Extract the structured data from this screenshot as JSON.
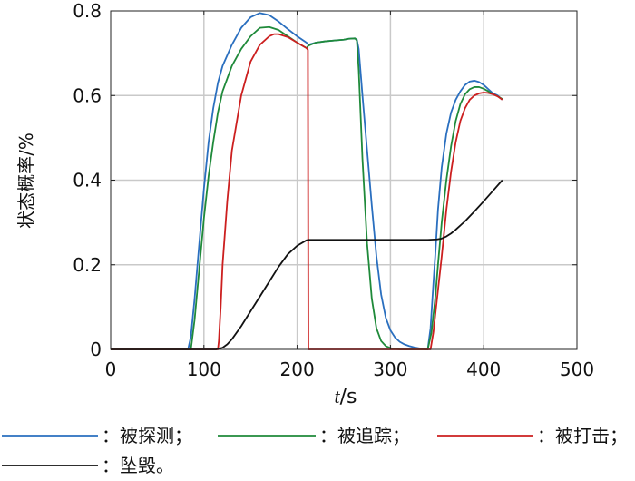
{
  "chart_data": {
    "type": "line",
    "title": "",
    "xlabel_var": "t",
    "xlabel_unit": "s",
    "ylabel": "状态概率/%",
    "xlim": [
      0,
      500
    ],
    "ylim": [
      0,
      0.8
    ],
    "xticks": [
      0,
      100,
      200,
      300,
      400,
      500
    ],
    "xtick_labels": [
      "0",
      "100",
      "200",
      "300",
      "400",
      "500"
    ],
    "yticks": [
      0,
      0.2,
      0.4,
      0.6,
      0.8
    ],
    "ytick_labels": [
      "0",
      "0.2",
      "0.4",
      "0.6",
      "0.8"
    ],
    "grid": true,
    "legend_position": "bottom",
    "series": [
      {
        "name": "：被探测；",
        "color": "#2a6fbf",
        "x": [
          0,
          83,
          86,
          90,
          95,
          100,
          105,
          110,
          115,
          120,
          130,
          140,
          150,
          160,
          170,
          180,
          190,
          200,
          210,
          212,
          220,
          230,
          240,
          250,
          255,
          262,
          264,
          266,
          270,
          275,
          280,
          285,
          290,
          295,
          300,
          305,
          310,
          315,
          320,
          325,
          330,
          335,
          338,
          340,
          343,
          345,
          348,
          351,
          355,
          360,
          365,
          370,
          375,
          380,
          385,
          390,
          395,
          400,
          405,
          410,
          415,
          420
        ],
        "y": [
          0,
          0,
          0.03,
          0.12,
          0.25,
          0.38,
          0.49,
          0.57,
          0.63,
          0.67,
          0.72,
          0.76,
          0.785,
          0.795,
          0.79,
          0.775,
          0.757,
          0.74,
          0.725,
          0.72,
          0.725,
          0.728,
          0.73,
          0.732,
          0.734,
          0.735,
          0.732,
          0.71,
          0.6,
          0.47,
          0.34,
          0.22,
          0.13,
          0.075,
          0.045,
          0.028,
          0.018,
          0.012,
          0.008,
          0.005,
          0.003,
          0.001,
          0,
          0,
          0.05,
          0.12,
          0.22,
          0.33,
          0.43,
          0.51,
          0.56,
          0.59,
          0.61,
          0.625,
          0.633,
          0.635,
          0.632,
          0.625,
          0.615,
          0.605,
          0.6,
          0.59
        ]
      },
      {
        "name": "：被追踪；",
        "color": "#1f8a3a",
        "x": [
          0,
          86,
          90,
          95,
          100,
          105,
          110,
          115,
          120,
          130,
          140,
          150,
          160,
          170,
          180,
          190,
          200,
          210,
          212,
          220,
          230,
          240,
          250,
          255,
          262,
          264,
          266,
          270,
          275,
          280,
          285,
          290,
          295,
          300,
          305,
          310,
          320,
          330,
          340,
          344,
          348,
          351,
          355,
          360,
          365,
          370,
          375,
          380,
          385,
          390,
          395,
          400,
          405,
          410,
          415,
          420
        ],
        "y": [
          0,
          0,
          0.07,
          0.19,
          0.31,
          0.41,
          0.49,
          0.56,
          0.61,
          0.67,
          0.71,
          0.74,
          0.76,
          0.762,
          0.755,
          0.74,
          0.725,
          0.712,
          0.718,
          0.725,
          0.728,
          0.73,
          0.732,
          0.734,
          0.735,
          0.73,
          0.66,
          0.45,
          0.25,
          0.12,
          0.05,
          0.02,
          0.008,
          0.003,
          0.001,
          0,
          0,
          0,
          0,
          0.04,
          0.12,
          0.2,
          0.3,
          0.4,
          0.48,
          0.54,
          0.58,
          0.603,
          0.615,
          0.62,
          0.62,
          0.616,
          0.61,
          0.603,
          0.598,
          0.592
        ]
      },
      {
        "name": "：被打击；",
        "color": "#cc1f1f",
        "x": [
          0,
          115,
          116,
          118,
          120,
          125,
          130,
          140,
          150,
          160,
          170,
          175,
          180,
          190,
          200,
          210,
          211.5,
          212,
          213,
          220,
          230,
          240,
          250,
          260,
          270,
          280,
          290,
          300,
          310,
          320,
          330,
          340,
          343,
          346,
          350,
          355,
          360,
          365,
          370,
          375,
          380,
          385,
          390,
          395,
          400,
          405,
          410,
          415,
          420
        ],
        "y": [
          0,
          0,
          0.02,
          0.1,
          0.2,
          0.35,
          0.47,
          0.6,
          0.68,
          0.72,
          0.74,
          0.745,
          0.745,
          0.738,
          0.725,
          0.712,
          0.708,
          0,
          0,
          0,
          0,
          0,
          0,
          0,
          0,
          0,
          0,
          0,
          0,
          0,
          0,
          0,
          0,
          0.04,
          0.12,
          0.22,
          0.33,
          0.42,
          0.49,
          0.54,
          0.57,
          0.59,
          0.6,
          0.605,
          0.607,
          0.606,
          0.603,
          0.598,
          0.59
        ]
      },
      {
        "name": "：坠毁。",
        "color": "#111111",
        "x": [
          0,
          113,
          115,
          120,
          125,
          130,
          140,
          150,
          160,
          170,
          180,
          190,
          200,
          210,
          212,
          220,
          250,
          300,
          340,
          350,
          355,
          360,
          365,
          370,
          380,
          390,
          400,
          410,
          420
        ],
        "y": [
          0,
          0,
          0.001,
          0.004,
          0.012,
          0.024,
          0.055,
          0.09,
          0.125,
          0.16,
          0.195,
          0.225,
          0.245,
          0.258,
          0.259,
          0.259,
          0.259,
          0.259,
          0.259,
          0.26,
          0.262,
          0.267,
          0.274,
          0.283,
          0.303,
          0.326,
          0.35,
          0.375,
          0.4
        ]
      }
    ]
  }
}
